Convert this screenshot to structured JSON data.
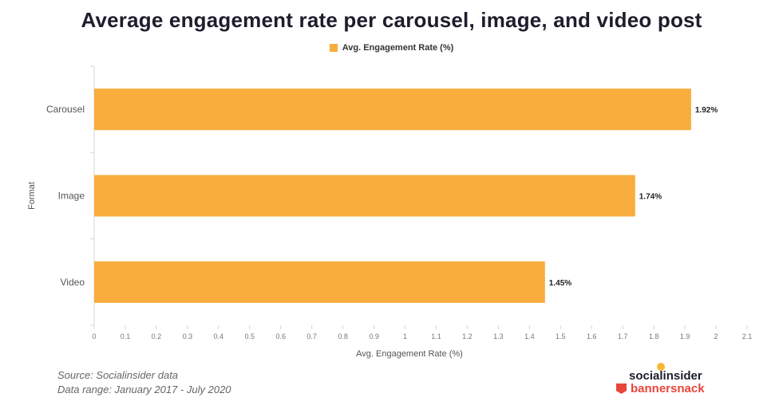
{
  "chart_data": {
    "type": "bar",
    "orientation": "horizontal",
    "title": "Average engagement rate per carousel, image, and video post",
    "categories": [
      "Carousel",
      "Image",
      "Video"
    ],
    "series": [
      {
        "name": "Avg. Engagement Rate (%)",
        "values": [
          1.92,
          1.74,
          1.45
        ]
      }
    ],
    "data_labels": [
      "1.92%",
      "1.74%",
      "1.45%"
    ],
    "xlabel": "Avg. Engagement Rate (%)",
    "ylabel": "Format",
    "xlim": [
      0,
      2.1
    ],
    "xticks": [
      "0",
      "0.1",
      "0.2",
      "0.3",
      "0.4",
      "0.5",
      "0.6",
      "0.7",
      "0.8",
      "0.9",
      "1",
      "1.1",
      "1.2",
      "1.3",
      "1.4",
      "1.5",
      "1.6",
      "1.7",
      "1.8",
      "1.9",
      "2",
      "2.1"
    ],
    "legend_position": "top",
    "bar_color": "#f8ad3d",
    "grid": false
  },
  "footer": {
    "source": "Source: Socialinsider data",
    "range": "Data range: January 2017 - July 2020",
    "brand_1": "socialinsider",
    "brand_2": "bannersnack"
  }
}
